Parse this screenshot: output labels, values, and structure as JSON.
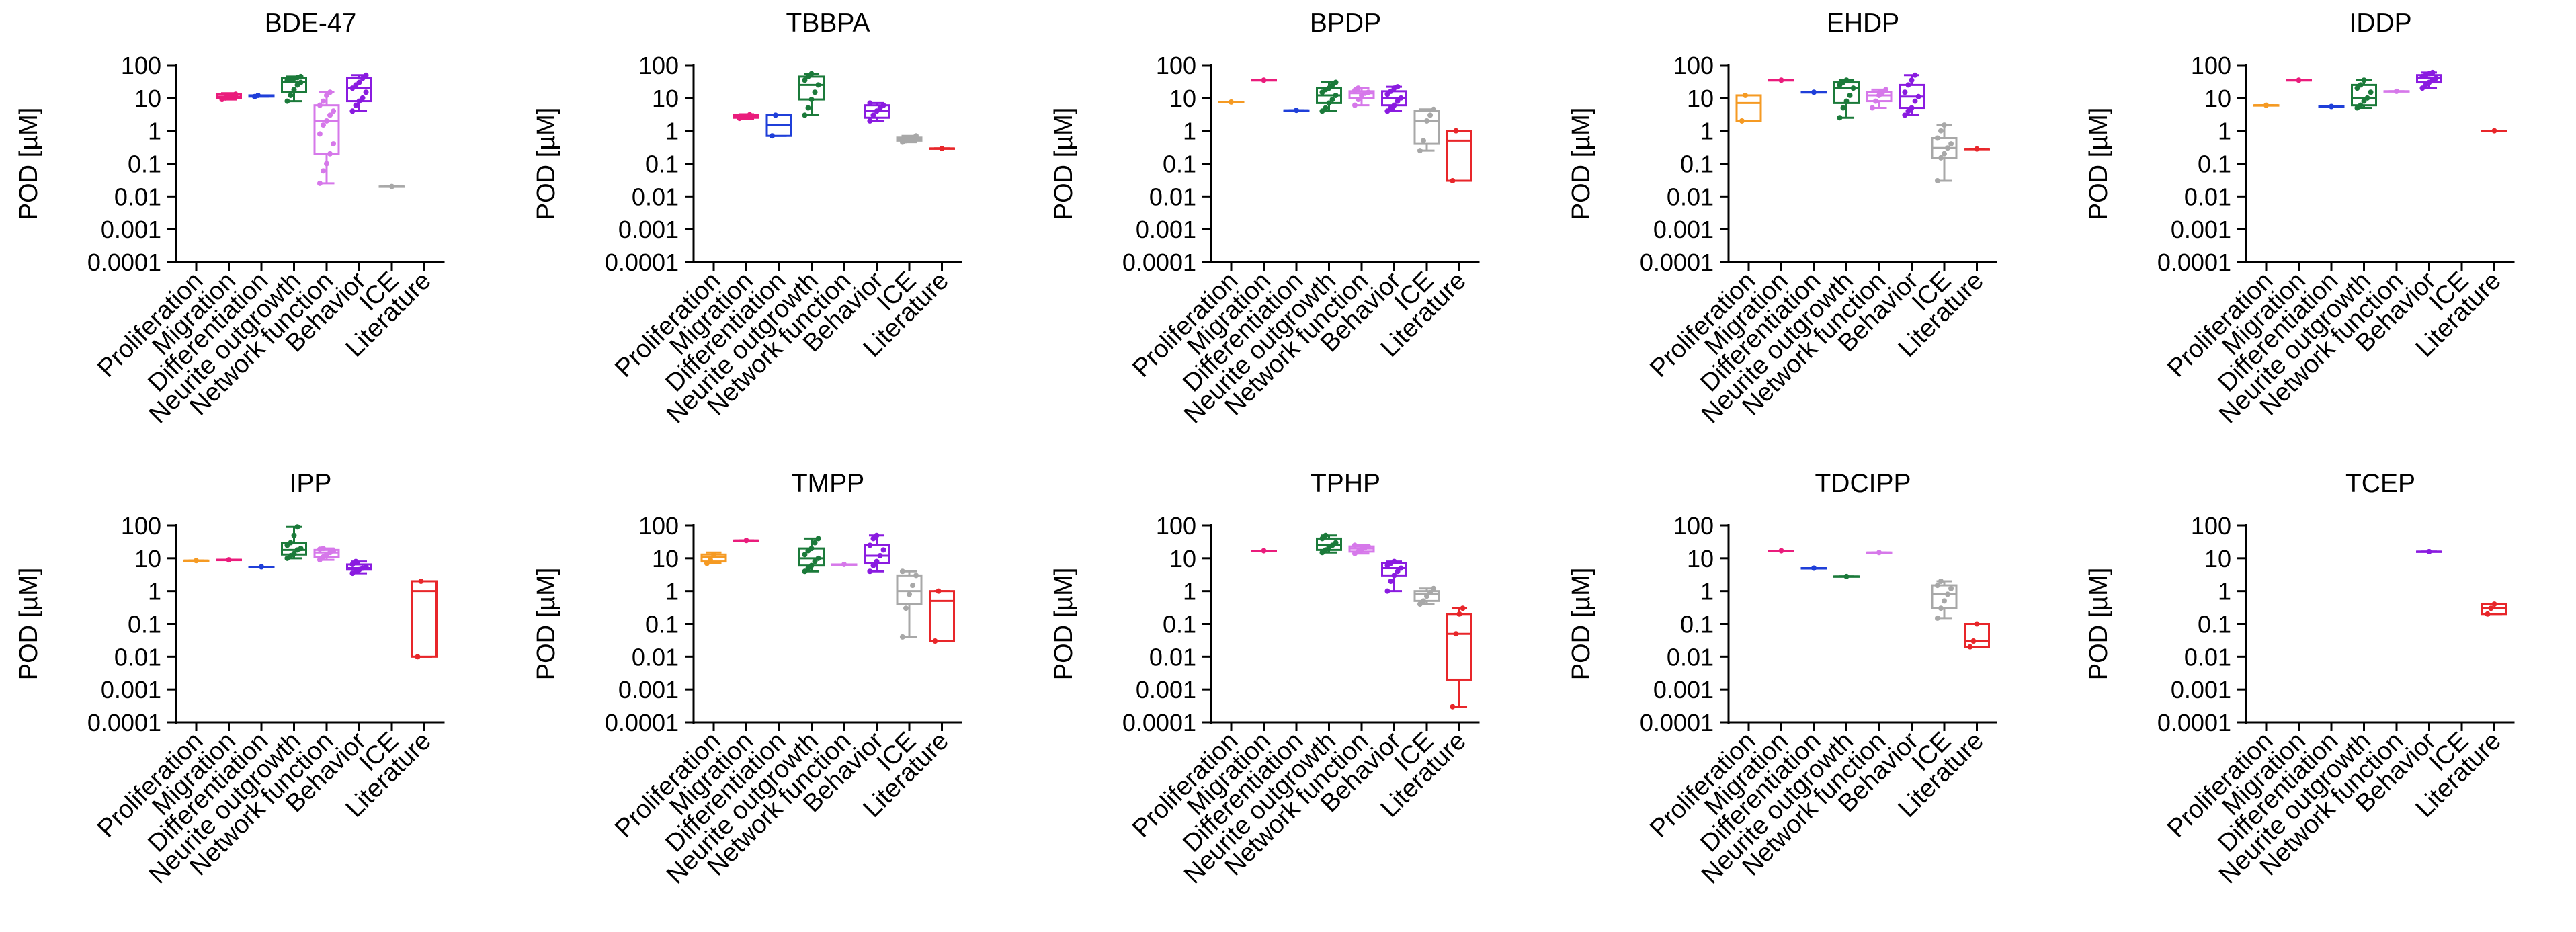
{
  "y_axis_label": "POD [µM]",
  "y_ticks": [
    {
      "value": 100,
      "label": "100"
    },
    {
      "value": 10,
      "label": "10"
    },
    {
      "value": 1,
      "label": "1"
    },
    {
      "value": 0.1,
      "label": "0.1"
    },
    {
      "value": 0.01,
      "label": "0.01"
    },
    {
      "value": 0.001,
      "label": "0.001"
    },
    {
      "value": 0.0001,
      "label": "0.0001"
    }
  ],
  "categories": [
    "Proliferation",
    "Migration",
    "Differentiation",
    "Neurite outgrowth",
    "Network function",
    "Behavior",
    "ICE",
    "Literature"
  ],
  "category_colors": [
    "#f59a23",
    "#ea1c7c",
    "#1f3fd9",
    "#1b7a3a",
    "#d678ea",
    "#8a1be0",
    "#a8a8a8",
    "#e8262a"
  ],
  "chart_data": [
    {
      "type": "box",
      "title": "BDE-47",
      "scale": "log10",
      "ylim": [
        0.0001,
        100
      ],
      "ylabel": "POD [µM]",
      "categories": [
        "Proliferation",
        "Migration",
        "Differentiation",
        "Neurite outgrowth",
        "Network function",
        "Behavior",
        "ICE",
        "Literature"
      ],
      "boxes": [
        null,
        {
          "min": 9,
          "q1": 10,
          "median": 11,
          "q3": 13,
          "max": 14,
          "points": [
            9,
            10,
            11,
            12,
            13
          ]
        },
        {
          "min": 11,
          "q1": 11,
          "median": 12,
          "q3": 12,
          "max": 12,
          "points": [
            11,
            12
          ]
        },
        {
          "min": 8,
          "q1": 15,
          "median": 30,
          "q3": 40,
          "max": 45,
          "points": [
            8,
            12,
            18,
            25,
            30,
            35,
            38,
            40,
            42,
            45
          ]
        },
        {
          "min": 0.025,
          "q1": 0.2,
          "median": 2,
          "q3": 6,
          "max": 15,
          "points": [
            0.025,
            0.06,
            0.1,
            0.2,
            0.4,
            0.8,
            1.5,
            2,
            3,
            4,
            6,
            8,
            12,
            15
          ]
        },
        {
          "min": 4,
          "q1": 8,
          "median": 20,
          "q3": 40,
          "max": 50,
          "points": [
            4,
            6,
            8,
            10,
            15,
            20,
            25,
            30,
            40,
            50
          ]
        },
        {
          "min": 0.02,
          "q1": 0.02,
          "median": 0.02,
          "q3": 0.02,
          "max": 0.02,
          "points": [
            0.02
          ]
        },
        null
      ]
    },
    {
      "type": "box",
      "title": "TBBPA",
      "scale": "log10",
      "ylim": [
        0.0001,
        100
      ],
      "ylabel": "POD [µM]",
      "categories": [
        "Proliferation",
        "Migration",
        "Differentiation",
        "Neurite outgrowth",
        "Network function",
        "Behavior",
        "ICE",
        "Literature"
      ],
      "boxes": [
        null,
        {
          "min": 2.3,
          "q1": 2.5,
          "median": 2.7,
          "q3": 3,
          "max": 3.2,
          "points": [
            2.4,
            2.6,
            2.8,
            3.1
          ]
        },
        {
          "min": 0.7,
          "q1": 0.7,
          "median": 1.5,
          "q3": 3,
          "max": 3,
          "points": [
            0.7,
            3
          ]
        },
        {
          "min": 3,
          "q1": 9,
          "median": 25,
          "q3": 45,
          "max": 55,
          "points": [
            3,
            5,
            9,
            15,
            25,
            35,
            45,
            55
          ]
        },
        null,
        {
          "min": 2,
          "q1": 2.5,
          "median": 4,
          "q3": 6,
          "max": 7,
          "points": [
            2,
            3,
            4,
            5,
            6,
            7
          ]
        },
        {
          "min": 0.45,
          "q1": 0.5,
          "median": 0.55,
          "q3": 0.62,
          "max": 0.7,
          "points": [
            0.45,
            0.5,
            0.55,
            0.6,
            0.7
          ]
        },
        {
          "min": 0.29,
          "q1": 0.29,
          "median": 0.29,
          "q3": 0.29,
          "max": 0.29,
          "points": [
            0.29
          ]
        }
      ]
    },
    {
      "type": "box",
      "title": "BPDP",
      "scale": "log10",
      "ylim": [
        0.0001,
        100
      ],
      "ylabel": "POD [µM]",
      "categories": [
        "Proliferation",
        "Migration",
        "Differentiation",
        "Neurite outgrowth",
        "Network function",
        "Behavior",
        "ICE",
        "Literature"
      ],
      "boxes": [
        {
          "min": 7.5,
          "q1": 7.5,
          "median": 7.5,
          "q3": 7.5,
          "max": 7.5,
          "points": [
            7.5
          ]
        },
        {
          "min": 35,
          "q1": 35,
          "median": 35,
          "q3": 35,
          "max": 35,
          "points": [
            35
          ]
        },
        {
          "min": 4.2,
          "q1": 4.2,
          "median": 4.2,
          "q3": 4.2,
          "max": 4.2,
          "points": [
            4.2
          ]
        },
        {
          "min": 4,
          "q1": 7,
          "median": 12,
          "q3": 20,
          "max": 30,
          "points": [
            4,
            5,
            7,
            9,
            12,
            15,
            18,
            20,
            25,
            30
          ]
        },
        {
          "min": 6,
          "q1": 10,
          "median": 14,
          "q3": 16,
          "max": 20,
          "points": [
            6,
            9,
            12,
            14,
            15,
            17,
            20
          ]
        },
        {
          "min": 4,
          "q1": 6,
          "median": 10,
          "q3": 16,
          "max": 22,
          "points": [
            4,
            5,
            6,
            8,
            10,
            13,
            16,
            20,
            22
          ]
        },
        {
          "min": 0.25,
          "q1": 0.4,
          "median": 2,
          "q3": 4,
          "max": 4.5,
          "points": [
            0.25,
            0.5,
            2,
            3,
            4.5
          ]
        },
        {
          "min": 0.03,
          "q1": 0.03,
          "median": 0.5,
          "q3": 1,
          "max": 1,
          "points": [
            0.03,
            1
          ]
        }
      ]
    },
    {
      "type": "box",
      "title": "EHDP",
      "scale": "log10",
      "ylim": [
        0.0001,
        100
      ],
      "ylabel": "POD [µM]",
      "categories": [
        "Proliferation",
        "Migration",
        "Differentiation",
        "Neurite outgrowth",
        "Network function",
        "Behavior",
        "ICE",
        "Literature"
      ],
      "boxes": [
        {
          "min": 2,
          "q1": 2,
          "median": 7,
          "q3": 12,
          "max": 12,
          "points": [
            2,
            12
          ]
        },
        {
          "min": 35,
          "q1": 35,
          "median": 35,
          "q3": 35,
          "max": 35,
          "points": [
            35
          ]
        },
        {
          "min": 15,
          "q1": 15,
          "median": 15,
          "q3": 15,
          "max": 15,
          "points": [
            15
          ]
        },
        {
          "min": 2.5,
          "q1": 7,
          "median": 20,
          "q3": 30,
          "max": 35,
          "points": [
            2.5,
            5,
            8,
            12,
            20,
            25,
            30,
            35
          ]
        },
        {
          "min": 5,
          "q1": 8,
          "median": 12,
          "q3": 15,
          "max": 18,
          "points": [
            5,
            8,
            12,
            15,
            18
          ]
        },
        {
          "min": 3,
          "q1": 5,
          "median": 11,
          "q3": 25,
          "max": 50,
          "points": [
            3,
            4,
            5,
            8,
            11,
            15,
            25,
            35,
            50
          ]
        },
        {
          "min": 0.03,
          "q1": 0.15,
          "median": 0.3,
          "q3": 0.6,
          "max": 1.5,
          "points": [
            0.03,
            0.15,
            0.2,
            0.3,
            0.4,
            0.6,
            1,
            1.5
          ]
        },
        {
          "min": 0.28,
          "q1": 0.28,
          "median": 0.28,
          "q3": 0.28,
          "max": 0.28,
          "points": [
            0.28
          ]
        }
      ]
    },
    {
      "type": "box",
      "title": "IDDP",
      "scale": "log10",
      "ylim": [
        0.0001,
        100
      ],
      "ylabel": "POD [µM]",
      "categories": [
        "Proliferation",
        "Migration",
        "Differentiation",
        "Neurite outgrowth",
        "Network function",
        "Behavior",
        "ICE",
        "Literature"
      ],
      "boxes": [
        {
          "min": 6,
          "q1": 6,
          "median": 6,
          "q3": 6,
          "max": 6,
          "points": [
            6
          ]
        },
        {
          "min": 35,
          "q1": 35,
          "median": 35,
          "q3": 35,
          "max": 35,
          "points": [
            35
          ]
        },
        {
          "min": 5.5,
          "q1": 5.5,
          "median": 5.5,
          "q3": 5.5,
          "max": 5.5,
          "points": [
            5.5
          ]
        },
        {
          "min": 5,
          "q1": 6,
          "median": 10,
          "q3": 25,
          "max": 35,
          "points": [
            5,
            6,
            8,
            10,
            15,
            20,
            25,
            35
          ]
        },
        {
          "min": 16,
          "q1": 16,
          "median": 16,
          "q3": 16,
          "max": 16,
          "points": [
            16
          ]
        },
        {
          "min": 20,
          "q1": 30,
          "median": 40,
          "q3": 50,
          "max": 60,
          "points": [
            20,
            25,
            30,
            35,
            40,
            45,
            50,
            55,
            60
          ]
        },
        null,
        {
          "min": 1,
          "q1": 1,
          "median": 1,
          "q3": 1,
          "max": 1,
          "points": [
            1
          ]
        }
      ]
    },
    {
      "type": "box",
      "title": "IPP",
      "scale": "log10",
      "ylim": [
        0.0001,
        100
      ],
      "ylabel": "POD [µM]",
      "categories": [
        "Proliferation",
        "Migration",
        "Differentiation",
        "Neurite outgrowth",
        "Network function",
        "Behavior",
        "ICE",
        "Literature"
      ],
      "boxes": [
        {
          "min": 8.5,
          "q1": 8.5,
          "median": 8.5,
          "q3": 8.5,
          "max": 8.5,
          "points": [
            8.5
          ]
        },
        {
          "min": 9,
          "q1": 9,
          "median": 9,
          "q3": 9,
          "max": 9,
          "points": [
            9
          ]
        },
        {
          "min": 5.5,
          "q1": 5.5,
          "median": 5.5,
          "q3": 5.5,
          "max": 5.5,
          "points": [
            5.5
          ]
        },
        {
          "min": 10,
          "q1": 13,
          "median": 18,
          "q3": 30,
          "max": 90,
          "points": [
            10,
            12,
            14,
            18,
            20,
            25,
            30,
            50,
            90
          ]
        },
        {
          "min": 9,
          "q1": 11,
          "median": 15,
          "q3": 18,
          "max": 20,
          "points": [
            9,
            11,
            13,
            15,
            17,
            19,
            20
          ]
        },
        {
          "min": 3.5,
          "q1": 4.5,
          "median": 5,
          "q3": 6.5,
          "max": 8,
          "points": [
            3.5,
            4,
            4.5,
            5,
            5.5,
            6.5,
            8
          ]
        },
        null,
        {
          "min": 0.01,
          "q1": 0.01,
          "median": 1,
          "q3": 2,
          "max": 2,
          "points": [
            0.01,
            2
          ]
        }
      ]
    },
    {
      "type": "box",
      "title": "TMPP",
      "scale": "log10",
      "ylim": [
        0.0001,
        100
      ],
      "ylabel": "POD [µM]",
      "categories": [
        "Proliferation",
        "Migration",
        "Differentiation",
        "Neurite outgrowth",
        "Network function",
        "Behavior",
        "ICE",
        "Literature"
      ],
      "boxes": [
        {
          "min": 7,
          "q1": 8,
          "median": 11,
          "q3": 13,
          "max": 15,
          "points": [
            7,
            9,
            13
          ]
        },
        {
          "min": 35,
          "q1": 35,
          "median": 35,
          "q3": 35,
          "max": 35,
          "points": [
            35
          ]
        },
        null,
        {
          "min": 4,
          "q1": 6,
          "median": 10,
          "q3": 20,
          "max": 40,
          "points": [
            4,
            5,
            6,
            8,
            10,
            13,
            17,
            20,
            30,
            40
          ]
        },
        {
          "min": 6.5,
          "q1": 6.5,
          "median": 6.5,
          "q3": 6.5,
          "max": 6.5,
          "points": [
            6.5
          ]
        },
        {
          "min": 4,
          "q1": 7,
          "median": 12,
          "q3": 25,
          "max": 50,
          "points": [
            4,
            6,
            8,
            12,
            18,
            25,
            40,
            50
          ]
        },
        {
          "min": 0.04,
          "q1": 0.4,
          "median": 1,
          "q3": 3,
          "max": 4,
          "points": [
            0.04,
            0.3,
            0.8,
            1.5,
            3,
            4
          ]
        },
        {
          "min": 0.03,
          "q1": 0.03,
          "median": 0.5,
          "q3": 1,
          "max": 1,
          "points": [
            0.03,
            1
          ]
        }
      ]
    },
    {
      "type": "box",
      "title": "TPHP",
      "scale": "log10",
      "ylim": [
        0.0001,
        100
      ],
      "ylabel": "POD [µM]",
      "categories": [
        "Proliferation",
        "Migration",
        "Differentiation",
        "Neurite outgrowth",
        "Network function",
        "Behavior",
        "ICE",
        "Literature"
      ],
      "boxes": [
        null,
        {
          "min": 17,
          "q1": 17,
          "median": 17,
          "q3": 17,
          "max": 17,
          "points": [
            17
          ]
        },
        null,
        {
          "min": 15,
          "q1": 18,
          "median": 25,
          "q3": 40,
          "max": 50,
          "points": [
            15,
            18,
            22,
            25,
            30,
            40,
            50
          ]
        },
        {
          "min": 14,
          "q1": 16,
          "median": 20,
          "q3": 23,
          "max": 25,
          "points": [
            14,
            16,
            19,
            21,
            23,
            25
          ]
        },
        {
          "min": 1,
          "q1": 3,
          "median": 5,
          "q3": 7,
          "max": 8,
          "points": [
            1,
            2,
            3,
            4,
            5,
            6,
            7,
            8
          ]
        },
        {
          "min": 0.4,
          "q1": 0.5,
          "median": 0.8,
          "q3": 1,
          "max": 1.2,
          "points": [
            0.4,
            0.5,
            0.7,
            0.9,
            1.2
          ]
        },
        {
          "min": 0.0003,
          "q1": 0.002,
          "median": 0.05,
          "q3": 0.2,
          "max": 0.3,
          "points": [
            0.0003,
            0.05,
            0.2,
            0.3
          ]
        }
      ]
    },
    {
      "type": "box",
      "title": "TDCIPP",
      "scale": "log10",
      "ylim": [
        0.0001,
        100
      ],
      "ylabel": "POD [µM]",
      "categories": [
        "Proliferation",
        "Migration",
        "Differentiation",
        "Neurite outgrowth",
        "Network function",
        "Behavior",
        "ICE",
        "Literature"
      ],
      "boxes": [
        null,
        {
          "min": 17,
          "q1": 17,
          "median": 17,
          "q3": 17,
          "max": 17,
          "points": [
            17
          ]
        },
        {
          "min": 5,
          "q1": 5,
          "median": 5,
          "q3": 5,
          "max": 5,
          "points": [
            5
          ]
        },
        {
          "min": 2.8,
          "q1": 2.8,
          "median": 2.8,
          "q3": 2.8,
          "max": 2.8,
          "points": [
            2.8
          ]
        },
        {
          "min": 15,
          "q1": 15,
          "median": 15,
          "q3": 15,
          "max": 15,
          "points": [
            15
          ]
        },
        null,
        {
          "min": 0.15,
          "q1": 0.3,
          "median": 0.8,
          "q3": 1.5,
          "max": 2,
          "points": [
            0.15,
            0.3,
            0.5,
            0.8,
            1.2,
            1.5,
            2
          ]
        },
        {
          "min": 0.02,
          "q1": 0.02,
          "median": 0.03,
          "q3": 0.1,
          "max": 0.1,
          "points": [
            0.02,
            0.03,
            0.1
          ]
        }
      ]
    },
    {
      "type": "box",
      "title": "TCEP",
      "scale": "log10",
      "ylim": [
        0.0001,
        100
      ],
      "ylabel": "POD [µM]",
      "categories": [
        "Proliferation",
        "Migration",
        "Differentiation",
        "Neurite outgrowth",
        "Network function",
        "Behavior",
        "ICE",
        "Literature"
      ],
      "boxes": [
        null,
        null,
        null,
        null,
        null,
        {
          "min": 16,
          "q1": 16,
          "median": 16,
          "q3": 16,
          "max": 16,
          "points": [
            16
          ]
        },
        null,
        {
          "min": 0.2,
          "q1": 0.2,
          "median": 0.3,
          "q3": 0.4,
          "max": 0.4,
          "points": [
            0.2,
            0.3,
            0.4
          ]
        }
      ]
    }
  ]
}
